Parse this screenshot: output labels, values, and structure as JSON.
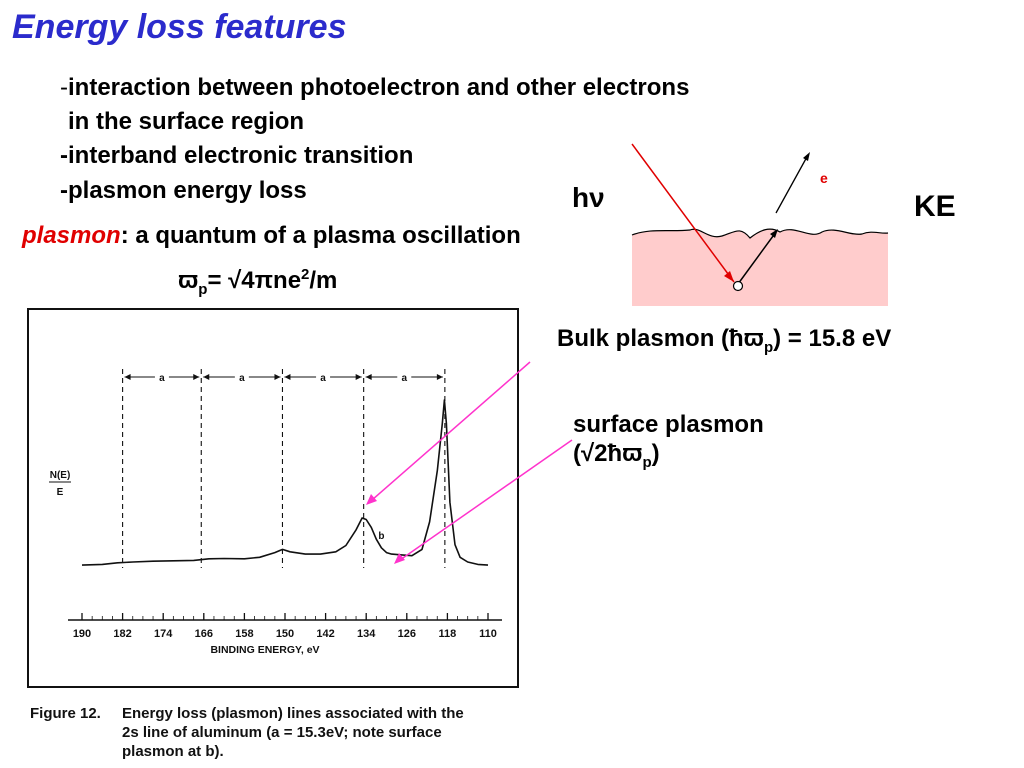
{
  "title": "Energy loss features",
  "bullets": {
    "b1_dash": "-",
    "b1_text": "interaction between photoelectron and other electrons",
    "b1_cont": "in the surface region",
    "b2": "-interband electronic  transition",
    "b3": "-plasmon energy loss"
  },
  "plasmon_def": {
    "keyword": "plasmon",
    "text": ": a quantum of a plasma oscillation"
  },
  "formula": {
    "omega": "ϖ",
    "sub": "p",
    "rest": "= √4πne",
    "sup": "2",
    "tail": "/m"
  },
  "diagram": {
    "hv": "hν",
    "ke": "KE",
    "e_label": "e",
    "colors": {
      "surface_fill": "#ffcccc",
      "incoming_ray": "#e00000",
      "outgoing_ray": "#000000"
    }
  },
  "annotations": {
    "bulk_prefix": "Bulk plasmon (ħϖ",
    "bulk_sub": "p",
    "bulk_suffix": ") = 15.8 eV",
    "surface_line1": "surface plasmon",
    "surface_prefix": "(√2ħϖ",
    "surface_sub": "p",
    "surface_suffix": ")",
    "arrow_color": "#ff33cc"
  },
  "chart_data": {
    "type": "line",
    "xlabel": "BINDING ENERGY, eV",
    "ylabel_top": "N(E)",
    "ylabel_bottom": "E",
    "x_ticks": [
      190,
      182,
      174,
      166,
      158,
      150,
      142,
      134,
      126,
      118,
      110
    ],
    "xlim": [
      190,
      110
    ],
    "spacing_label": "a",
    "spacing_markers": [
      182,
      166.5,
      150.5,
      134.5,
      118.5
    ],
    "peak_label": "b",
    "peak_label_x": 131,
    "series": [
      {
        "x": [
          190,
          186,
          183,
          180,
          176,
          172,
          168,
          165,
          162,
          158,
          155,
          152,
          150.5,
          149,
          146,
          143,
          140,
          138,
          136,
          134.8,
          134,
          133,
          132,
          131,
          130,
          129,
          127,
          125,
          123,
          121.5,
          120,
          119,
          118.6,
          118.2,
          117.5,
          116.5,
          115.5,
          114,
          112,
          110
        ],
        "y": [
          1.0,
          1.1,
          1.3,
          1.4,
          1.5,
          1.55,
          1.6,
          1.8,
          1.85,
          1.8,
          2.0,
          2.6,
          3.0,
          2.7,
          2.4,
          2.4,
          2.7,
          3.5,
          5.5,
          7.0,
          6.8,
          5.8,
          4.3,
          3.2,
          2.6,
          2.4,
          2.3,
          2.2,
          3.0,
          6.5,
          13.0,
          19.0,
          22.0,
          19.0,
          9.0,
          3.6,
          2.0,
          1.4,
          1.1,
          1.0
        ]
      }
    ]
  },
  "caption": {
    "fig": "Figure 12.",
    "line1": "Energy loss (plasmon) lines associated with the",
    "line2": "2s  line  of  aluminum    (a  =  15.3eV;  note surface",
    "line3": "plasmon at b)."
  }
}
